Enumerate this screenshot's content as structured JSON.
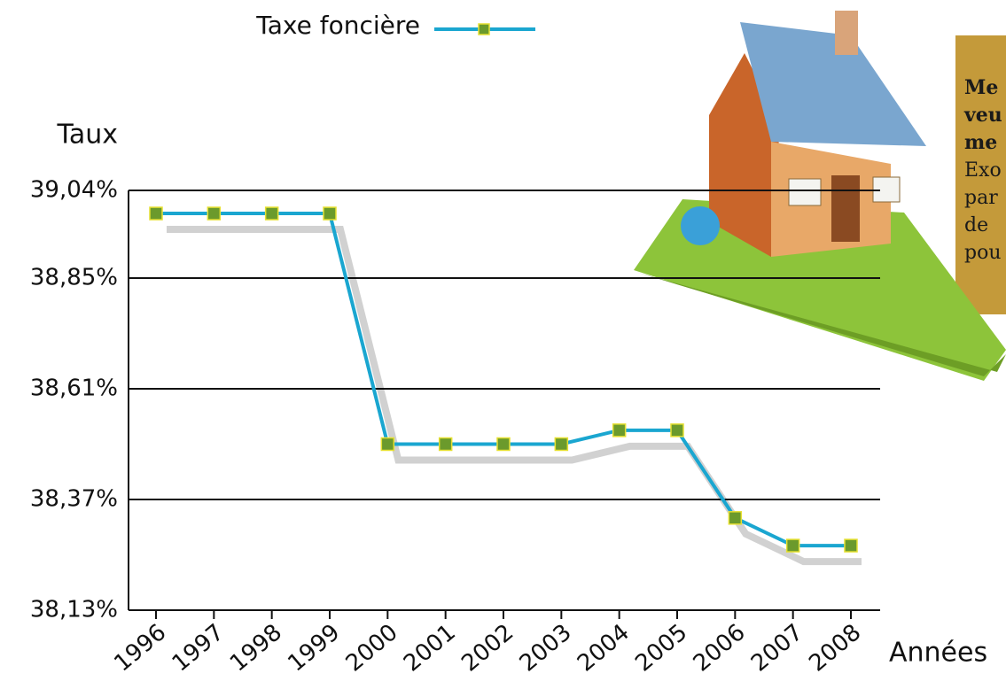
{
  "chart_data": {
    "type": "line",
    "legend": "top",
    "ylabel": "Taux",
    "xlabel": "Années",
    "categories": [
      "1996",
      "1997",
      "1998",
      "1999",
      "2000",
      "2001",
      "2002",
      "2003",
      "2004",
      "2005",
      "2006",
      "2007",
      "2008"
    ],
    "series": [
      {
        "name": "Taxe foncière",
        "color": "#1aa6d0",
        "marker_color": "#6b9a2c",
        "values": [
          38.99,
          38.99,
          38.99,
          38.99,
          38.49,
          38.49,
          38.49,
          38.49,
          38.52,
          38.52,
          38.33,
          38.27,
          38.27
        ]
      }
    ],
    "ylim": [
      38.13,
      39.04
    ],
    "yticks": [
      {
        "value": 39.04,
        "label": "39,04%"
      },
      {
        "value": 38.85,
        "label": "38,85%"
      },
      {
        "value": 38.61,
        "label": "38,61%"
      },
      {
        "value": 38.37,
        "label": "38,37%"
      },
      {
        "value": 38.13,
        "label": "38,13%"
      }
    ],
    "grid": true,
    "annotation": [
      "Me",
      "veu",
      "me",
      "Exo",
      "par",
      "de",
      "pou"
    ]
  }
}
